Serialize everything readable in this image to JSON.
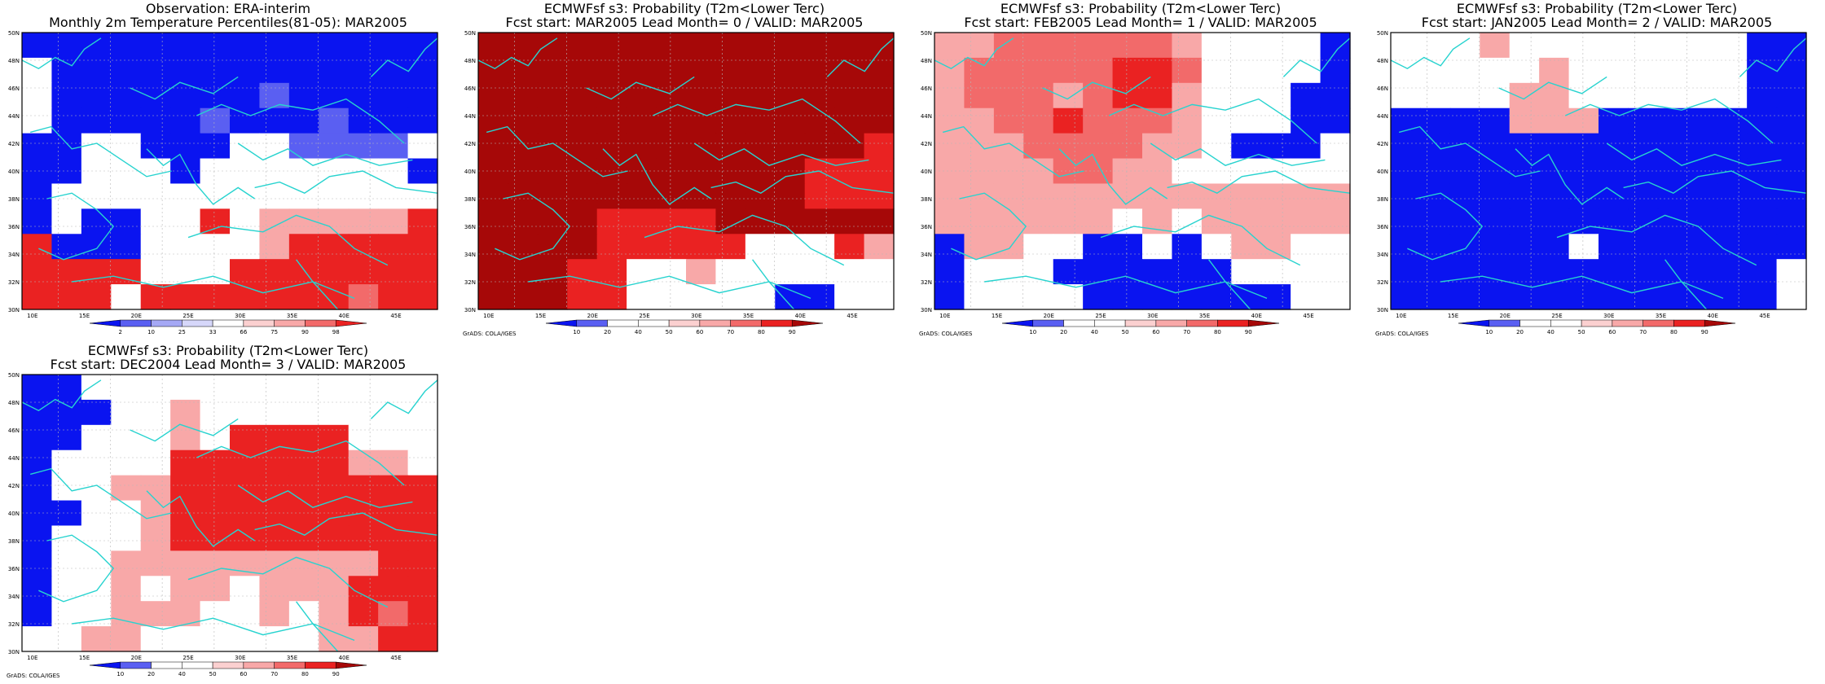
{
  "map_style": {
    "coast_color": "#27d3cf",
    "blue_strong": "#0a14f0",
    "blue_mid": "#5a5ff2",
    "blue_light": "#a5a8f5",
    "red_light": "#f8a8a8",
    "red_mid": "#f26a6a",
    "red_strong": "#ea2222",
    "red_dark": "#a60808",
    "white": "#ffffff"
  },
  "axes": {
    "lat_labels": [
      "50N",
      "48N",
      "46N",
      "44N",
      "42N",
      "40N",
      "38N",
      "36N",
      "34N",
      "32N",
      "30N"
    ],
    "lon_labels": [
      "10E",
      "15E",
      "20E",
      "25E",
      "30E",
      "35E",
      "40E",
      "45E"
    ]
  },
  "panels": [
    {
      "id": "obs",
      "title_line1": "Observation: ERA-interim",
      "title_line2": "Monthly 2m Temperature Percentiles(81-05): MAR2005",
      "colorbar_labels": [
        "2",
        "10",
        "25",
        "33",
        "66",
        "75",
        "90",
        "98"
      ],
      "colorbar_colors": [
        "#0a14f0",
        "#5a5ff2",
        "#a5a8f5",
        "#d6d7fa",
        "#ffffff",
        "#fbd0d0",
        "#f8a8a8",
        "#f26a6a",
        "#ea2222"
      ],
      "credit": "",
      "grid": [
        "BBBBBBBBBBBBBB",
        "WBBBBBBBBBBBBB",
        "WBBBBBBBLBBBBB",
        "WBBBBBLBBBLBBB",
        "BBWWBBBWWLLLLW",
        "BBWWWBWWWWWWWB",
        "BWWWWWWWWWWWWW",
        "BWBBWWRWHHHHHR",
        "RBBBWWWWHRRRRR",
        "RRRRWWWRRRRRRR",
        "RRRWRRRRRRRMRR"
      ]
    },
    {
      "id": "lead0",
      "title_line1": "ECMWFsf s3: Probability (T2m<Lower Terc)",
      "title_line2": "Fcst start: MAR2005   Lead Month= 0 / VALID: MAR2005",
      "colorbar_labels": [
        "10",
        "20",
        "40",
        "50",
        "60",
        "70",
        "80",
        "90"
      ],
      "colorbar_colors": [
        "#0a14f0",
        "#5a5ff2",
        "#ffffff",
        "#ffffff",
        "#fbd0d0",
        "#f8a8a8",
        "#f26a6a",
        "#ea2222",
        "#a60808"
      ],
      "credit": "GrADS: COLA/IGES",
      "grid": [
        "DDDDDDDDDDDDDD",
        "DDDDDDDDDDDDDD",
        "DDDDDDDDDDDDDD",
        "DDDDDDDDDDDDDD",
        "DDDDDDDDDDDDDR",
        "DDDDDDDDDDDRRR",
        "DDDDDDDDDDDRRR",
        "DDDDRRRRDDDDDD",
        "DDDDRRRRRWWWRH",
        "DDDRRWWHWWWWWW",
        "DDDRRWWWWWBBWW"
      ]
    },
    {
      "id": "lead1",
      "title_line1": "ECMWFsf s3: Probability (T2m<Lower Terc)",
      "title_line2": "Fcst start: FEB2005   Lead Month= 1 / VALID: MAR2005",
      "colorbar_labels": [
        "10",
        "20",
        "40",
        "50",
        "60",
        "70",
        "80",
        "90"
      ],
      "colorbar_colors": [
        "#0a14f0",
        "#5a5ff2",
        "#ffffff",
        "#ffffff",
        "#fbd0d0",
        "#f8a8a8",
        "#f26a6a",
        "#ea2222",
        "#a60808"
      ],
      "credit": "GrADS: COLA/IGES",
      "grid": [
        "HHMMMMMMHWWWWB",
        "HMMMMMRRMWWWWB",
        "HMMMHMRRHWWWBB",
        "HHMMRMMMHWWWBB",
        "HHHMMMMHHWBBBW",
        "HHHHMMHHWWWWWW",
        "HHHHHHHHHHHHHH",
        "HHHHHHWHWHHHHH",
        "BHHWWBBWBWHHWW",
        "BWWWBBBBBBWWWW",
        "BWWWWBBBBBBBWW"
      ]
    },
    {
      "id": "lead2",
      "title_line1": "ECMWFsf s3: Probability (T2m<Lower Terc)",
      "title_line2": "Fcst start: JAN2005   Lead Month= 2 / VALID: MAR2005",
      "colorbar_labels": [
        "10",
        "20",
        "40",
        "50",
        "60",
        "70",
        "80",
        "90"
      ],
      "colorbar_colors": [
        "#0a14f0",
        "#5a5ff2",
        "#ffffff",
        "#ffffff",
        "#fbd0d0",
        "#f8a8a8",
        "#f26a6a",
        "#ea2222",
        "#a60808"
      ],
      "credit": "GrADS: COLA/IGES",
      "grid": [
        "WWWHWWWWWWWWBB",
        "WWWWWHWWWWWWBB",
        "WWWWHHWWWWWWBB",
        "BBBBHHHBBBBBBB",
        "BBBBBBBBBBBBBB",
        "BBBBBBBBBBBBBB",
        "BBBBBBBBBBBBBB",
        "BBBBBBBBBBBBBB",
        "BBBBBBWBBBBBBB",
        "BBBBBBBBBBBBBW",
        "BBBBBBBBBBBBBW"
      ]
    },
    {
      "id": "lead3",
      "title_line1": "ECMWFsf s3: Probability (T2m<Lower Terc)",
      "title_line2": "Fcst start: DEC2004   Lead Month= 3 / VALID: MAR2005",
      "colorbar_labels": [
        "10",
        "20",
        "40",
        "50",
        "60",
        "70",
        "80",
        "90"
      ],
      "colorbar_colors": [
        "#0a14f0",
        "#5a5ff2",
        "#ffffff",
        "#ffffff",
        "#fbd0d0",
        "#f8a8a8",
        "#f26a6a",
        "#ea2222",
        "#a60808"
      ],
      "credit": "GrADS: COLA/IGES",
      "grid": [
        "BBWWWWWWWWWWWW",
        "BBBWWHWWWWWWWW",
        "BBWWWHWRRRRWWW",
        "BWWWWRRRRRRHHW",
        "BWWHHRRRRRRRRR",
        "BBWWHRRRRRRRRR",
        "BWWWHRRRRRRRRR",
        "BWWHHHHHHHHHRR",
        "BWWHWHHWHHHRRR",
        "BWWHHHWWHWHRMR",
        "WWHHWWWWWWHHRR"
      ]
    }
  ]
}
